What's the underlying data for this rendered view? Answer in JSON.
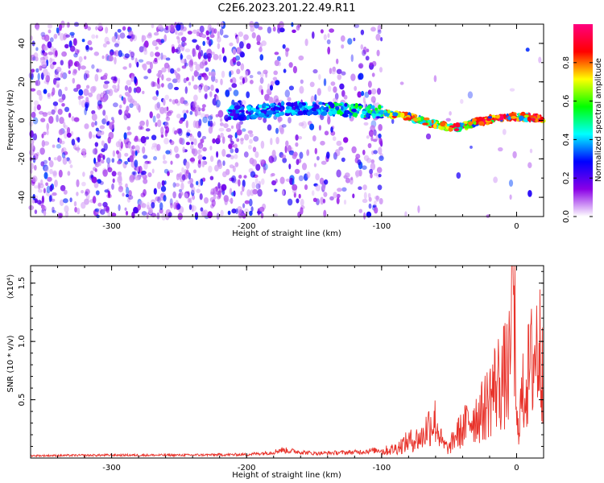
{
  "chart_data": [
    {
      "type": "heatmap",
      "title": "C2E6.2023.201.22.49.R11",
      "xlabel": "Height of straight line (km)",
      "ylabel": "Frequency (Hz)",
      "xlim": [
        -360,
        20
      ],
      "ylim": [
        -50,
        50
      ],
      "xticks": [
        -300,
        -200,
        -100,
        0
      ],
      "yticks": [
        -40,
        -20,
        0,
        20,
        40
      ],
      "colorbar": {
        "label": "Normalized spectral amplitude",
        "range": [
          0,
          1
        ],
        "ticks": [
          "0.0",
          "0.2",
          "0.4",
          "0.6",
          "0.8"
        ],
        "colors": [
          "#ffffff",
          "#8a00e6",
          "#0000ff",
          "#00ffff",
          "#00ff00",
          "#ffff00",
          "#ff0000",
          "#ff007f"
        ]
      },
      "ridge": {
        "description_points_x": [
          -200,
          -170,
          -140,
          -100,
          -80,
          -60,
          -45,
          -30,
          -15,
          0,
          20
        ],
        "description_points_y": [
          4,
          6,
          6,
          4,
          2,
          -2,
          -4,
          -1,
          1,
          2,
          1
        ]
      }
    },
    {
      "type": "line",
      "xlabel": "Height of straight line (km)",
      "ylabel": "SNR (10 * v/v)",
      "yscale_label": "(x10⁴)",
      "xlim": [
        -360,
        20
      ],
      "ylim": [
        0,
        16500
      ],
      "xticks": [
        -300,
        -200,
        -100,
        0
      ],
      "yticks": [
        "0.5",
        "1.0",
        "1.5"
      ],
      "ytick_values": [
        5000,
        10000,
        15000
      ],
      "color": "#e8322a",
      "series": [
        {
          "x": [
            -360,
            -300,
            -250,
            -200,
            -180,
            -175,
            -150,
            -120,
            -100,
            -90,
            -80,
            -70,
            -65,
            -60,
            -55,
            -50,
            -45,
            -40,
            -35,
            -30,
            -25,
            -20,
            -15,
            -10,
            -5,
            -3,
            0,
            5,
            10,
            15,
            20
          ],
          "values": [
            200,
            250,
            250,
            300,
            500,
            700,
            400,
            500,
            700,
            1000,
            1800,
            2200,
            3600,
            4000,
            1500,
            1000,
            2500,
            3000,
            4200,
            4500,
            5000,
            6500,
            8000,
            8500,
            9500,
            16500,
            3000,
            7000,
            9500,
            12000,
            11000
          ]
        }
      ]
    }
  ]
}
